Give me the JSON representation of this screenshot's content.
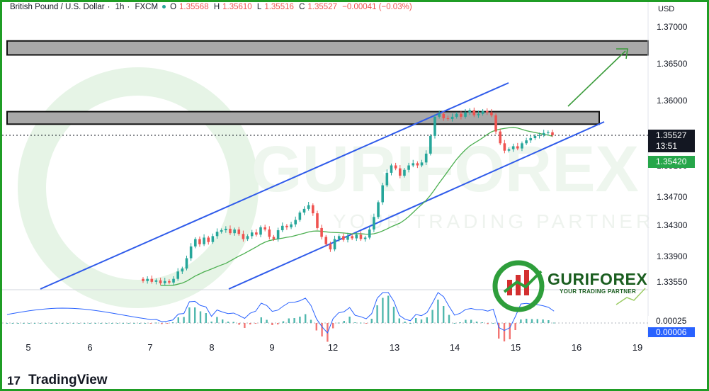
{
  "header": {
    "symbol": "British Pound / U.S. Dollar",
    "interval": "1h",
    "exchange": "FXCM",
    "open_label": "O",
    "open": "1.35568",
    "high_label": "H",
    "high": "1.35610",
    "low_label": "L",
    "low": "1.35516",
    "close_label": "C",
    "close": "1.35527",
    "change": "−0.00041 (−0.03%)"
  },
  "price_axis": {
    "currency": "USD",
    "ticks": [
      "1.37000",
      "1.36500",
      "1.36000",
      "1.35100",
      "1.34700",
      "1.34300",
      "1.33900",
      "1.33550"
    ],
    "current_price": "1.35527",
    "countdown": "13:51",
    "sma_value": "1.35420",
    "oscillator_value_1": "0.00025",
    "oscillator_value_2": "0.00006"
  },
  "time_axis": {
    "ticks": [
      "5",
      "6",
      "7",
      "8",
      "9",
      "12",
      "13",
      "14",
      "15",
      "16",
      "19"
    ]
  },
  "watermark": {
    "brand": "GURIFOREX",
    "tagline": "YOUR TRADING PARTNER"
  },
  "logo": {
    "brand": "GURIFOREX",
    "tagline": "YOUR TRADING PARTNER"
  },
  "footer": {
    "platform": "TradingView"
  },
  "colors": {
    "up": "#26a69a",
    "down": "#ef5350",
    "channel": "#2f5bea",
    "sma": "#4caf50",
    "zone": "#a9a9a9",
    "frame": "#1f9d25"
  },
  "chart_data": {
    "type": "candlestick",
    "symbol": "British Pound / U.S. Dollar",
    "interval": "1h",
    "y_range": [
      1.3335,
      1.3715
    ],
    "x_ticks": [
      "5",
      "6",
      "7",
      "8",
      "9",
      "12",
      "13",
      "14",
      "15",
      "16",
      "19"
    ],
    "ohlc_last": {
      "open": 1.35568,
      "high": 1.3561,
      "low": 1.35516,
      "close": 1.35527
    },
    "closes_approx": [
      1.3355,
      1.3358,
      1.3354,
      1.3356,
      1.3352,
      1.3355,
      1.3353,
      1.3358,
      1.3368,
      1.3372,
      1.3386,
      1.3402,
      1.3412,
      1.3405,
      1.3414,
      1.3408,
      1.3416,
      1.3422,
      1.3424,
      1.3426,
      1.342,
      1.3425,
      1.3419,
      1.3412,
      1.3416,
      1.3421,
      1.3418,
      1.3428,
      1.3425,
      1.3415,
      1.3412,
      1.3424,
      1.343,
      1.3428,
      1.3432,
      1.3438,
      1.3448,
      1.3453,
      1.3458,
      1.3447,
      1.3427,
      1.3415,
      1.3405,
      1.3398,
      1.3412,
      1.3416,
      1.3411,
      1.3416,
      1.3413,
      1.3418,
      1.3412,
      1.3414,
      1.3425,
      1.3442,
      1.3462,
      1.3485,
      1.3502,
      1.3512,
      1.3508,
      1.3498,
      1.3506,
      1.3512,
      1.3515,
      1.3512,
      1.3516,
      1.3528,
      1.3552,
      1.3578,
      1.3582,
      1.3576,
      1.3575,
      1.3578,
      1.3582,
      1.3578,
      1.3584,
      1.3587,
      1.358,
      1.3582,
      1.3586,
      1.3584,
      1.358,
      1.3558,
      1.3542,
      1.3532,
      1.3534,
      1.3538,
      1.3535,
      1.3542,
      1.3546,
      1.3549,
      1.3552,
      1.3553,
      1.3556,
      1.3557,
      1.3553
    ],
    "sma_last": 1.3542,
    "resistance_zones": [
      [
        1.3662,
        1.3681
      ],
      [
        1.3568,
        1.3585
      ]
    ],
    "channel": "ascending",
    "oscillator": {
      "values": [
        "0.00025",
        "0.00006"
      ]
    }
  }
}
